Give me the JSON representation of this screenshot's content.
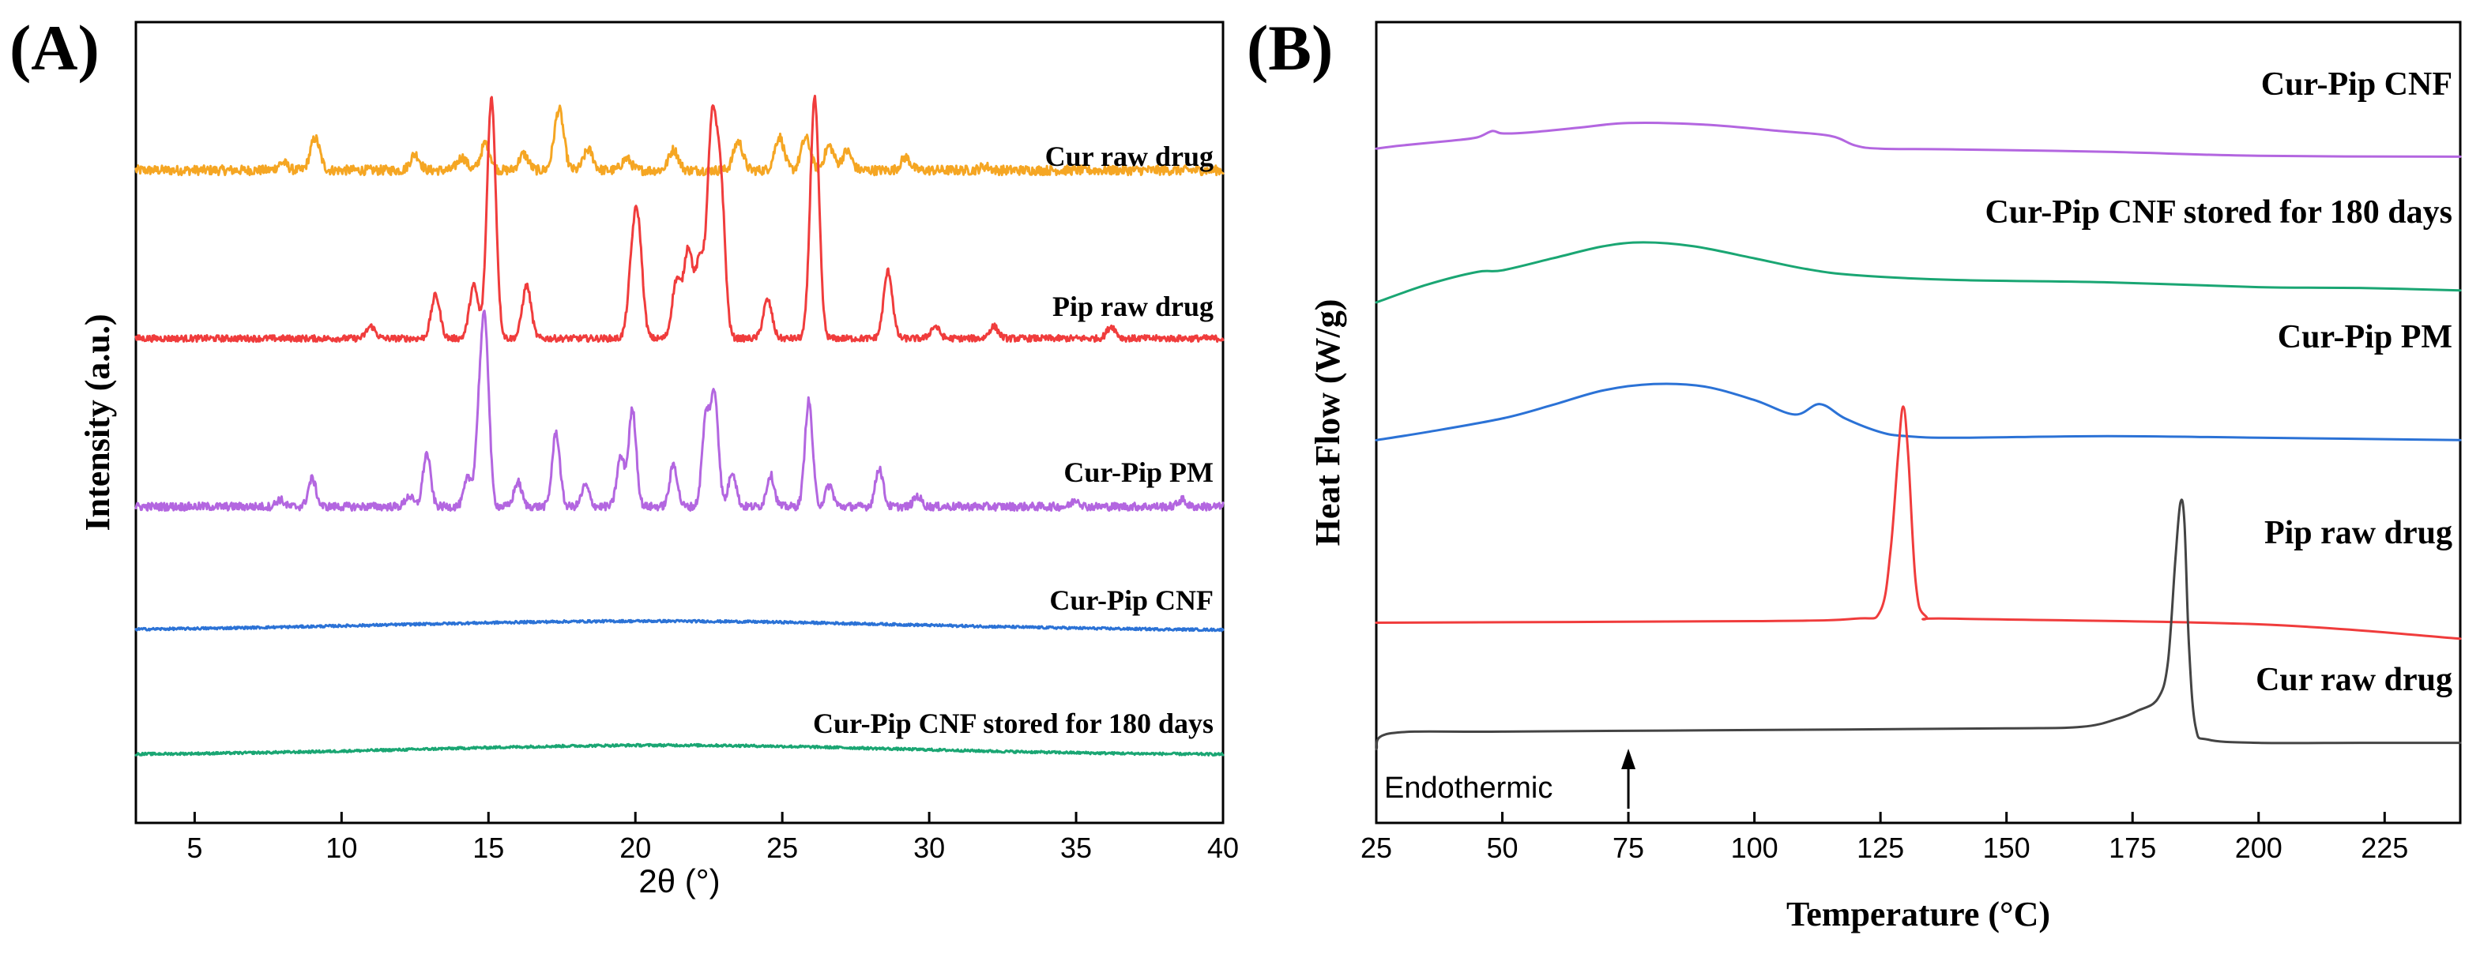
{
  "chart_data": [
    {
      "panel": "(A)",
      "type": "line",
      "title": "",
      "xlabel": "2θ (°)",
      "ylabel": "Intensity (a.u.)",
      "xlim": [
        3,
        40
      ],
      "xticks": [
        5,
        10,
        15,
        20,
        25,
        30,
        35,
        40
      ],
      "yticks": [],
      "series": [
        {
          "name": "Cur raw drug",
          "color": "#f5a623",
          "offset": 0.8,
          "base": 0.015,
          "amplitude": 0.08,
          "peaks": [
            [
              8.0,
              0.12
            ],
            [
              9.1,
              0.5
            ],
            [
              12.5,
              0.25
            ],
            [
              14.1,
              0.2
            ],
            [
              14.9,
              0.42
            ],
            [
              16.2,
              0.25
            ],
            [
              17.4,
              0.95
            ],
            [
              18.4,
              0.32
            ],
            [
              19.7,
              0.18
            ],
            [
              21.3,
              0.32
            ],
            [
              23.5,
              0.45
            ],
            [
              24.9,
              0.52
            ],
            [
              25.8,
              0.5
            ],
            [
              26.6,
              0.38
            ],
            [
              27.2,
              0.3
            ],
            [
              29.2,
              0.2
            ],
            [
              31.9,
              0.06
            ]
          ],
          "peak_width": 0.16,
          "noise": 0.012
        },
        {
          "name": "Pip raw drug",
          "color": "#f03c3c",
          "offset": 0.59,
          "base": 0.015,
          "amplitude": 0.3,
          "peaks": [
            [
              11.0,
              0.05
            ],
            [
              13.2,
              0.18
            ],
            [
              14.5,
              0.22
            ],
            [
              15.1,
              1.0
            ],
            [
              16.3,
              0.22
            ],
            [
              19.9,
              0.27
            ],
            [
              20.1,
              0.4
            ],
            [
              21.4,
              0.24
            ],
            [
              21.8,
              0.37
            ],
            [
              22.2,
              0.32
            ],
            [
              22.6,
              0.85
            ],
            [
              22.9,
              0.63
            ],
            [
              24.5,
              0.16
            ],
            [
              26.1,
              1.0
            ],
            [
              28.6,
              0.28
            ],
            [
              30.2,
              0.05
            ],
            [
              32.2,
              0.05
            ],
            [
              36.2,
              0.05
            ]
          ],
          "peak_width": 0.15,
          "noise": 0.008
        },
        {
          "name": "Cur-Pip PM",
          "color": "#b366e0",
          "offset": 0.38,
          "base": 0.015,
          "amplitude": 0.22,
          "peaks": [
            [
              7.9,
              0.04
            ],
            [
              9.0,
              0.16
            ],
            [
              12.3,
              0.06
            ],
            [
              12.9,
              0.3
            ],
            [
              14.3,
              0.16
            ],
            [
              14.7,
              0.5
            ],
            [
              14.9,
              0.9
            ],
            [
              16.0,
              0.14
            ],
            [
              17.3,
              0.42
            ],
            [
              18.3,
              0.12
            ],
            [
              19.5,
              0.28
            ],
            [
              19.9,
              0.55
            ],
            [
              21.3,
              0.24
            ],
            [
              22.4,
              0.5
            ],
            [
              22.7,
              0.62
            ],
            [
              23.3,
              0.2
            ],
            [
              24.6,
              0.18
            ],
            [
              25.9,
              0.6
            ],
            [
              26.6,
              0.12
            ],
            [
              28.3,
              0.22
            ],
            [
              29.6,
              0.06
            ],
            [
              35.0,
              0.04
            ],
            [
              38.6,
              0.04
            ]
          ],
          "peak_width": 0.13,
          "noise": 0.01
        },
        {
          "name": "Cur-Pip CNF",
          "color": "#2b72d6",
          "offset": 0.24,
          "base": 0.0,
          "amplitude": 0.0,
          "hump": [
            20.5,
            9.0,
            0.012
          ],
          "peaks": [
            [
              31.6,
              0.012
            ]
          ],
          "peak_width": 0.15,
          "noise": 0.003
        },
        {
          "name": "Cur-Pip CNF stored for 180 days",
          "color": "#1aa673",
          "offset": 0.085,
          "base": 0.0,
          "amplitude": 0.0,
          "hump": [
            21.0,
            8.0,
            0.012
          ],
          "peaks": [
            [
              31.6,
              0.006
            ]
          ],
          "peak_width": 0.15,
          "noise": 0.003
        }
      ]
    },
    {
      "panel": "(B)",
      "type": "line",
      "title": "",
      "xlabel": "Temperature (°C)",
      "ylabel": "Heat Flow (W/g)",
      "xlim": [
        25,
        240
      ],
      "xticks": [
        25,
        50,
        75,
        100,
        125,
        150,
        175,
        200,
        225
      ],
      "annotation": "Endothermic",
      "annotation_x": 75,
      "series": [
        {
          "name": "Cur-Pip CNF",
          "color": "#b366e0",
          "points": [
            [
              25,
              0.842
            ],
            [
              30,
              0.846
            ],
            [
              40,
              0.852
            ],
            [
              45,
              0.856
            ],
            [
              48,
              0.864
            ],
            [
              50,
              0.861
            ],
            [
              55,
              0.862
            ],
            [
              65,
              0.868
            ],
            [
              75,
              0.874
            ],
            [
              90,
              0.872
            ],
            [
              105,
              0.864
            ],
            [
              115,
              0.858
            ],
            [
              120,
              0.846
            ],
            [
              125,
              0.842
            ],
            [
              140,
              0.841
            ],
            [
              170,
              0.838
            ],
            [
              200,
              0.833
            ],
            [
              240,
              0.832
            ]
          ]
        },
        {
          "name": "Cur-Pip CNF stored for 180 days",
          "color": "#1aa673",
          "points": [
            [
              25,
              0.65
            ],
            [
              35,
              0.672
            ],
            [
              45,
              0.688
            ],
            [
              50,
              0.69
            ],
            [
              60,
              0.705
            ],
            [
              70,
              0.72
            ],
            [
              78,
              0.725
            ],
            [
              88,
              0.72
            ],
            [
              100,
              0.705
            ],
            [
              110,
              0.692
            ],
            [
              120,
              0.684
            ],
            [
              140,
              0.678
            ],
            [
              170,
              0.675
            ],
            [
              200,
              0.669
            ],
            [
              220,
              0.668
            ],
            [
              240,
              0.665
            ]
          ]
        },
        {
          "name": "Cur-Pip PM",
          "color": "#2b72d6",
          "points": [
            [
              25,
              0.478
            ],
            [
              35,
              0.488
            ],
            [
              50,
              0.505
            ],
            [
              60,
              0.522
            ],
            [
              70,
              0.54
            ],
            [
              80,
              0.548
            ],
            [
              90,
              0.545
            ],
            [
              100,
              0.528
            ],
            [
              108,
              0.51
            ],
            [
              113,
              0.523
            ],
            [
              118,
              0.505
            ],
            [
              125,
              0.488
            ],
            [
              130,
              0.483
            ],
            [
              140,
              0.481
            ],
            [
              170,
              0.483
            ],
            [
              200,
              0.481
            ],
            [
              240,
              0.478
            ]
          ]
        },
        {
          "name": "Pip raw drug",
          "color": "#f03c3c",
          "points": [
            [
              25,
              0.25
            ],
            [
              100,
              0.252
            ],
            [
              120,
              0.255
            ],
            [
              125,
              0.265
            ],
            [
              127,
              0.34
            ],
            [
              128.5,
              0.46
            ],
            [
              129.5,
              0.52
            ],
            [
              130.5,
              0.46
            ],
            [
              132,
              0.3
            ],
            [
              134,
              0.258
            ],
            [
              140,
              0.255
            ],
            [
              200,
              0.248
            ],
            [
              240,
              0.23
            ]
          ]
        },
        {
          "name": "Cur raw drug",
          "color": "#444444",
          "points": [
            [
              25,
              0.092
            ],
            [
              28,
              0.112
            ],
            [
              50,
              0.114
            ],
            [
              100,
              0.116
            ],
            [
              150,
              0.118
            ],
            [
              165,
              0.12
            ],
            [
              172,
              0.13
            ],
            [
              176,
              0.14
            ],
            [
              180,
              0.155
            ],
            [
              182,
              0.2
            ],
            [
              183.5,
              0.33
            ],
            [
              184.5,
              0.4
            ],
            [
              185.3,
              0.375
            ],
            [
              186.2,
              0.22
            ],
            [
              187.5,
              0.12
            ],
            [
              190,
              0.104
            ],
            [
              200,
              0.1
            ],
            [
              220,
              0.1
            ],
            [
              240,
              0.1
            ]
          ]
        }
      ]
    }
  ]
}
